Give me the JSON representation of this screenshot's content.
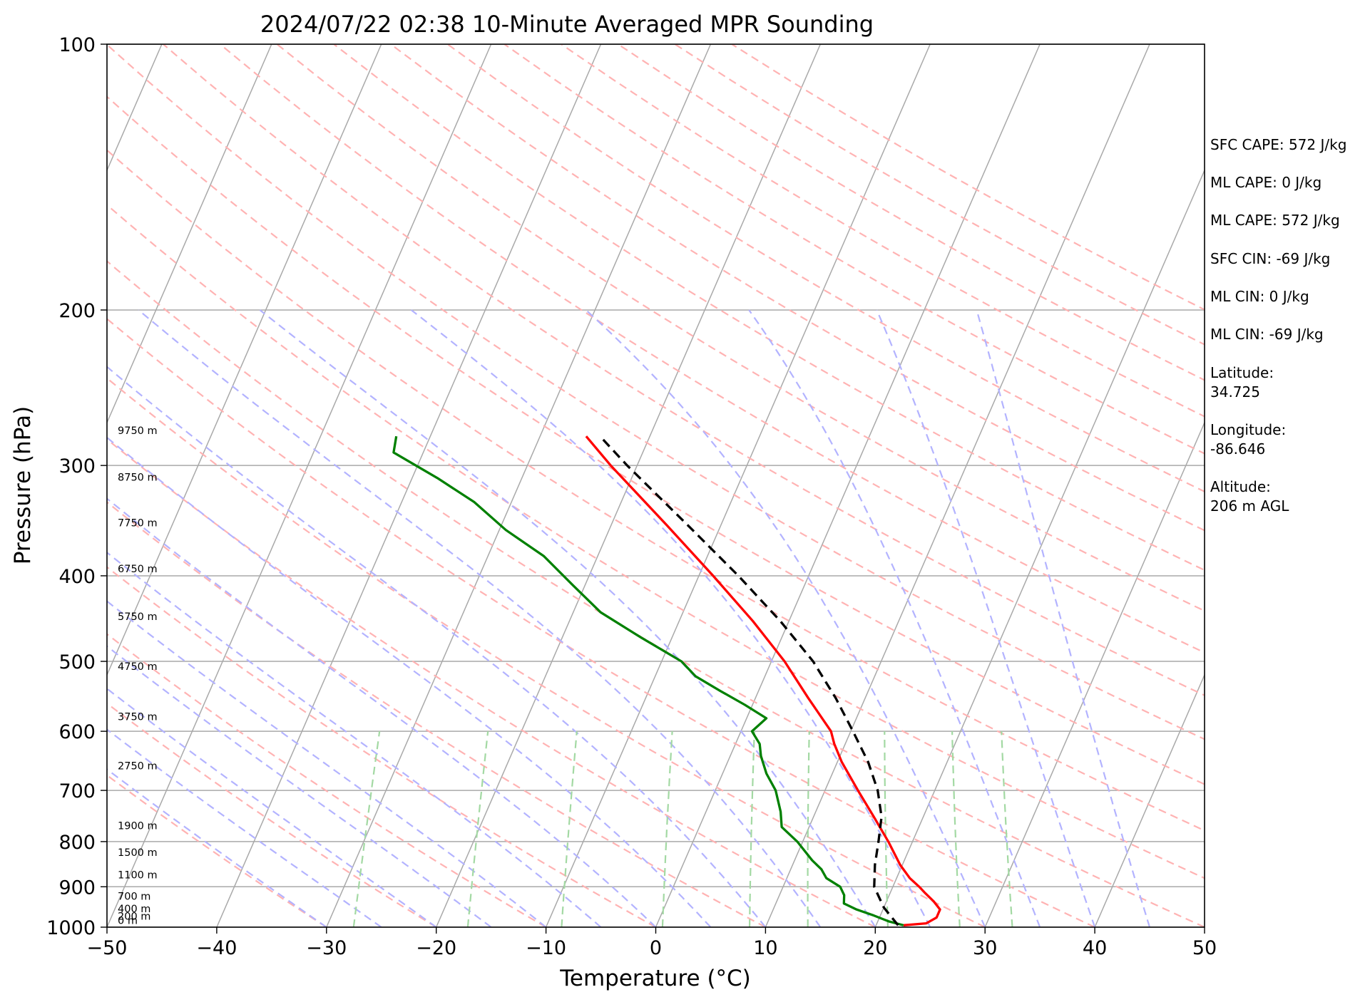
{
  "chart_data": {
    "type": "line",
    "subtype": "skew-t log-p sounding",
    "title": "2024/07/22 02:38 10-Minute Averaged MPR Sounding",
    "xlabel": "Temperature (°C)",
    "ylabel": "Pressure (hPa)",
    "xlim": [
      -50,
      50
    ],
    "ylim": [
      1000,
      100
    ],
    "y_scale": "log",
    "x_ticks": [
      "−50",
      "−40",
      "−30",
      "−20",
      "−10",
      "0",
      "10",
      "20",
      "30",
      "40",
      "50"
    ],
    "y_ticks": [
      "100",
      "200",
      "300",
      "400",
      "500",
      "600",
      "700",
      "800",
      "900",
      "1000"
    ],
    "grid": "horizontal pressure lines plus skewed isotherms",
    "background_lines": {
      "isotherm_color": "#a9a9a9",
      "dry_adiabat_color": "#ffb3b3",
      "moist_adiabat_color": "#b3b3ff",
      "mixing_ratio_color": "#a3d9a3"
    },
    "height_labels": [
      {
        "label": "9750 m",
        "p": 279
      },
      {
        "label": "8750 m",
        "p": 315
      },
      {
        "label": "7750 m",
        "p": 355
      },
      {
        "label": "6750 m",
        "p": 400
      },
      {
        "label": "5750 m",
        "p": 453
      },
      {
        "label": "4750 m",
        "p": 516
      },
      {
        "label": "3750 m",
        "p": 588
      },
      {
        "label": "2750 m",
        "p": 669
      },
      {
        "label": "1900 m",
        "p": 782
      },
      {
        "label": "1500 m",
        "p": 838
      },
      {
        "label": "1100 m",
        "p": 889
      },
      {
        "label": "700 m",
        "p": 940
      },
      {
        "label": "400 m",
        "p": 971
      },
      {
        "label": "200 m",
        "p": 990
      },
      {
        "label": "0 m",
        "p": 1001
      }
    ],
    "series": [
      {
        "color": "#ff0000",
        "style": "solid",
        "points": [
          {
            "p": 995,
            "t": 22.5
          },
          {
            "p": 990,
            "t": 24.5
          },
          {
            "p": 975,
            "t": 25.2
          },
          {
            "p": 955,
            "t": 25.2
          },
          {
            "p": 935,
            "t": 24.3
          },
          {
            "p": 915,
            "t": 23.2
          },
          {
            "p": 900,
            "t": 22.4
          },
          {
            "p": 880,
            "t": 21.2
          },
          {
            "p": 850,
            "t": 19.8
          },
          {
            "p": 800,
            "t": 17.8
          },
          {
            "p": 750,
            "t": 15.5
          },
          {
            "p": 700,
            "t": 13.0
          },
          {
            "p": 650,
            "t": 10.4
          },
          {
            "p": 620,
            "t": 9.0
          },
          {
            "p": 600,
            "t": 8.2
          },
          {
            "p": 550,
            "t": 4.8
          },
          {
            "p": 500,
            "t": 1.2
          },
          {
            "p": 450,
            "t": -3.3
          },
          {
            "p": 400,
            "t": -8.7
          },
          {
            "p": 350,
            "t": -15.0
          },
          {
            "p": 300,
            "t": -22.4
          },
          {
            "p": 278,
            "t": -25.8
          }
        ]
      },
      {
        "color": "#008000",
        "style": "solid",
        "points": [
          {
            "p": 995,
            "t": 22.5
          },
          {
            "p": 985,
            "t": 21.0
          },
          {
            "p": 970,
            "t": 19.4
          },
          {
            "p": 955,
            "t": 17.6
          },
          {
            "p": 940,
            "t": 16.2
          },
          {
            "p": 920,
            "t": 15.9
          },
          {
            "p": 900,
            "t": 15.2
          },
          {
            "p": 880,
            "t": 13.6
          },
          {
            "p": 860,
            "t": 12.8
          },
          {
            "p": 840,
            "t": 11.6
          },
          {
            "p": 800,
            "t": 9.5
          },
          {
            "p": 770,
            "t": 7.5
          },
          {
            "p": 740,
            "t": 6.8
          },
          {
            "p": 700,
            "t": 5.5
          },
          {
            "p": 670,
            "t": 4.0
          },
          {
            "p": 640,
            "t": 2.8
          },
          {
            "p": 620,
            "t": 2.2
          },
          {
            "p": 600,
            "t": 1.0
          },
          {
            "p": 580,
            "t": 1.8
          },
          {
            "p": 560,
            "t": -0.7
          },
          {
            "p": 540,
            "t": -3.5
          },
          {
            "p": 520,
            "t": -6.3
          },
          {
            "p": 500,
            "t": -8.2
          },
          {
            "p": 470,
            "t": -12.8
          },
          {
            "p": 440,
            "t": -17.5
          },
          {
            "p": 410,
            "t": -21.1
          },
          {
            "p": 380,
            "t": -24.9
          },
          {
            "p": 355,
            "t": -29.4
          },
          {
            "p": 330,
            "t": -33.4
          },
          {
            "p": 310,
            "t": -37.7
          },
          {
            "p": 290,
            "t": -42.7
          },
          {
            "p": 278,
            "t": -43.1
          }
        ]
      },
      {
        "color": "#000000",
        "style": "dashed",
        "points": [
          {
            "p": 995,
            "t": 22.0
          },
          {
            "p": 950,
            "t": 20.0
          },
          {
            "p": 900,
            "t": 18.3
          },
          {
            "p": 850,
            "t": 17.5
          },
          {
            "p": 800,
            "t": 16.9
          },
          {
            "p": 750,
            "t": 16.2
          },
          {
            "p": 700,
            "t": 14.8
          },
          {
            "p": 650,
            "t": 12.8
          },
          {
            "p": 600,
            "t": 10.2
          },
          {
            "p": 550,
            "t": 7.3
          },
          {
            "p": 500,
            "t": 3.8
          },
          {
            "p": 450,
            "t": -0.8
          },
          {
            "p": 400,
            "t": -6.4
          },
          {
            "p": 350,
            "t": -13.1
          },
          {
            "p": 300,
            "t": -20.9
          },
          {
            "p": 280,
            "t": -24.2
          }
        ]
      }
    ]
  },
  "info_panel": [
    {
      "key": "sfc_cape",
      "text": "SFC CAPE: 572 J/kg"
    },
    {
      "key": "ml_cape_1",
      "text": "ML CAPE: 0 J/kg"
    },
    {
      "key": "ml_cape_2",
      "text": "ML CAPE: 572 J/kg"
    },
    {
      "key": "sfc_cin",
      "text": "SFC CIN: -69 J/kg"
    },
    {
      "key": "ml_cin_1",
      "text": "ML CIN: 0 J/kg"
    },
    {
      "key": "ml_cin_2",
      "text": "ML CIN: -69 J/kg"
    },
    {
      "key": "latitude_label",
      "text": "Latitude:"
    },
    {
      "key": "latitude_value",
      "text": "34.725"
    },
    {
      "key": "longitude_label",
      "text": "Longitude:"
    },
    {
      "key": "longitude_value",
      "text": "-86.646"
    },
    {
      "key": "altitude_label",
      "text": "Altitude:"
    },
    {
      "key": "altitude_value",
      "text": "206 m AGL"
    }
  ]
}
